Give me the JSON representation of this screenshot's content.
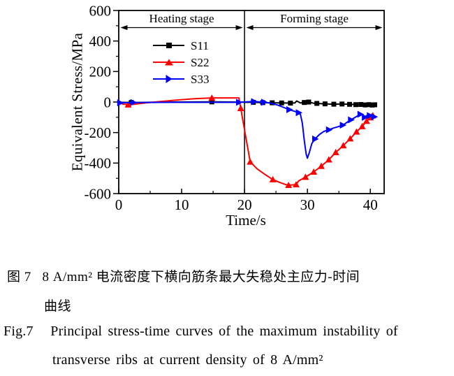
{
  "chart_data": {
    "type": "line",
    "title": "",
    "xlabel": "Time/s",
    "ylabel": "Equivalent Stress/MPa",
    "xlim": [
      0,
      42.2
    ],
    "ylim": [
      -600,
      600
    ],
    "x_major_ticks": [
      0,
      10,
      20,
      30,
      40
    ],
    "x_minor_ticks": [
      5,
      15,
      25,
      35
    ],
    "y_major_ticks": [
      -600,
      -400,
      -200,
      0,
      200,
      400,
      600
    ],
    "y_minor_ticks": [
      -500,
      -300,
      -100,
      100,
      300,
      500
    ],
    "grid": false,
    "frame": true,
    "stage_divider_x": 20,
    "stages": [
      {
        "label": "Heating stage",
        "x_from": 0,
        "x_to": 20
      },
      {
        "label": "Forming stage",
        "x_from": 20,
        "x_to": 42.2
      }
    ],
    "legend_position": "upper-left-inside",
    "series": [
      {
        "name": "S11",
        "color": "#000000",
        "marker": "square",
        "points": [
          [
            0,
            -2
          ],
          [
            2,
            -3
          ],
          [
            6,
            -1
          ],
          [
            10,
            0
          ],
          [
            14.8,
            1
          ],
          [
            19,
            0
          ],
          [
            20.3,
            -2
          ],
          [
            21.4,
            -2
          ],
          [
            22.9,
            -4
          ],
          [
            24.4,
            -5
          ],
          [
            25.9,
            -6
          ],
          [
            27.3,
            -7
          ],
          [
            28,
            -6
          ],
          [
            28.3,
            7
          ],
          [
            28.9,
            -6
          ],
          [
            29.5,
            -3
          ],
          [
            30.2,
            0
          ],
          [
            31,
            -8
          ],
          [
            31.5,
            -9
          ],
          [
            32.8,
            -12
          ],
          [
            34.2,
            -14
          ],
          [
            35.5,
            -13
          ],
          [
            36.7,
            -15
          ],
          [
            37.7,
            -17
          ],
          [
            38.5,
            -16
          ],
          [
            39.2,
            -19
          ],
          [
            39.8,
            -17
          ],
          [
            40.3,
            -20
          ],
          [
            40.7,
            -18
          ]
        ],
        "markers": [
          [
            2,
            -3
          ],
          [
            14.8,
            1
          ],
          [
            21.4,
            -2
          ],
          [
            22.9,
            -4
          ],
          [
            24.4,
            -5
          ],
          [
            25.9,
            -6
          ],
          [
            27.3,
            -7
          ],
          [
            29.5,
            -3
          ],
          [
            30.2,
            0
          ],
          [
            31.5,
            -9
          ],
          [
            32.8,
            -12
          ],
          [
            34.2,
            -14
          ],
          [
            35.5,
            -13
          ],
          [
            36.7,
            -15
          ],
          [
            37.7,
            -17
          ],
          [
            38.5,
            -16
          ],
          [
            39.2,
            -19
          ],
          [
            39.8,
            -17
          ],
          [
            40.3,
            -20
          ],
          [
            40.7,
            -18
          ]
        ]
      },
      {
        "name": "S22",
        "color": "#ff0000",
        "marker": "triangle-up",
        "points": [
          [
            0,
            -5
          ],
          [
            0.8,
            -14
          ],
          [
            1.5,
            -18
          ],
          [
            2.5,
            -14
          ],
          [
            4,
            -7
          ],
          [
            6,
            1
          ],
          [
            9,
            12
          ],
          [
            12,
            22
          ],
          [
            14.8,
            27
          ],
          [
            17,
            27
          ],
          [
            19.1,
            27
          ],
          [
            19.4,
            -41
          ],
          [
            20.2,
            -230
          ],
          [
            20.9,
            -392
          ],
          [
            22,
            -438
          ],
          [
            23.2,
            -473
          ],
          [
            24.5,
            -508
          ],
          [
            25.6,
            -527
          ],
          [
            26.5,
            -540
          ],
          [
            27,
            -545
          ],
          [
            28.2,
            -541
          ],
          [
            28.6,
            -517
          ],
          [
            29.7,
            -492
          ],
          [
            31,
            -458
          ],
          [
            32.2,
            -420
          ],
          [
            33.4,
            -378
          ],
          [
            34.5,
            -330
          ],
          [
            35.7,
            -285
          ],
          [
            36.8,
            -240
          ],
          [
            37.8,
            -195
          ],
          [
            38.7,
            -160
          ],
          [
            39.4,
            -125
          ],
          [
            40,
            -102
          ],
          [
            40.4,
            -88
          ]
        ],
        "markers": [
          [
            1.5,
            -18
          ],
          [
            14.8,
            27
          ],
          [
            19.4,
            -41
          ],
          [
            20.9,
            -392
          ],
          [
            24.5,
            -508
          ],
          [
            27,
            -545
          ],
          [
            28.2,
            -541
          ],
          [
            29.7,
            -492
          ],
          [
            31,
            -458
          ],
          [
            32.2,
            -420
          ],
          [
            33.4,
            -378
          ],
          [
            34.5,
            -330
          ],
          [
            35.7,
            -285
          ],
          [
            36.8,
            -240
          ],
          [
            37.8,
            -195
          ],
          [
            38.7,
            -160
          ],
          [
            39.4,
            -125
          ],
          [
            40,
            -102
          ],
          [
            40.4,
            -88
          ]
        ]
      },
      {
        "name": "S33",
        "color": "#0000ff",
        "marker": "triangle-right",
        "points": [
          [
            0,
            -6
          ],
          [
            0.2,
            -5
          ],
          [
            2.3,
            -3
          ],
          [
            8,
            -2
          ],
          [
            14,
            -2
          ],
          [
            19.1,
            -2
          ],
          [
            20.3,
            1
          ],
          [
            21.5,
            3
          ],
          [
            23.1,
            -1
          ],
          [
            24.2,
            -8
          ],
          [
            25.3,
            -20
          ],
          [
            26.2,
            -35
          ],
          [
            27.1,
            -50
          ],
          [
            27.9,
            -60
          ],
          [
            28.6,
            -70
          ],
          [
            28.9,
            -82
          ],
          [
            29.2,
            -140
          ],
          [
            29.5,
            -250
          ],
          [
            29.8,
            -340
          ],
          [
            30,
            -368
          ],
          [
            30.3,
            -332
          ],
          [
            30.7,
            -272
          ],
          [
            31.2,
            -242
          ],
          [
            31.9,
            -213
          ],
          [
            32.6,
            -193
          ],
          [
            33.4,
            -182
          ],
          [
            34.2,
            -170
          ],
          [
            35,
            -160
          ],
          [
            35.6,
            -152
          ],
          [
            36.3,
            -133
          ],
          [
            36.9,
            -117
          ],
          [
            37.4,
            -105
          ],
          [
            38,
            -90
          ],
          [
            38.4,
            -80
          ],
          [
            38.8,
            -87
          ],
          [
            39.1,
            -100
          ],
          [
            39.5,
            -86
          ],
          [
            39.9,
            -89
          ],
          [
            40.3,
            -93
          ],
          [
            40.6,
            -97
          ]
        ],
        "markers": [
          [
            0.2,
            -5
          ],
          [
            2.3,
            -3
          ],
          [
            19.1,
            -2
          ],
          [
            21.5,
            3
          ],
          [
            23.1,
            -1
          ],
          [
            27.1,
            -50
          ],
          [
            28.6,
            -70
          ],
          [
            31.2,
            -242
          ],
          [
            33.4,
            -182
          ],
          [
            35.6,
            -152
          ],
          [
            36.9,
            -117
          ],
          [
            38.4,
            -80
          ],
          [
            39.1,
            -100
          ],
          [
            39.9,
            -89
          ],
          [
            40.6,
            -97
          ]
        ]
      }
    ]
  },
  "caption": {
    "cn_line1": "图 7   8 A/mm² 电流密度下横向筋条最大失稳处主应力-时间",
    "cn_line2": "曲线",
    "en_line1": "Fig.7   Principal stress-time curves of the maximum instability of",
    "en_line2": "transverse ribs at current density of 8 A/mm²"
  }
}
